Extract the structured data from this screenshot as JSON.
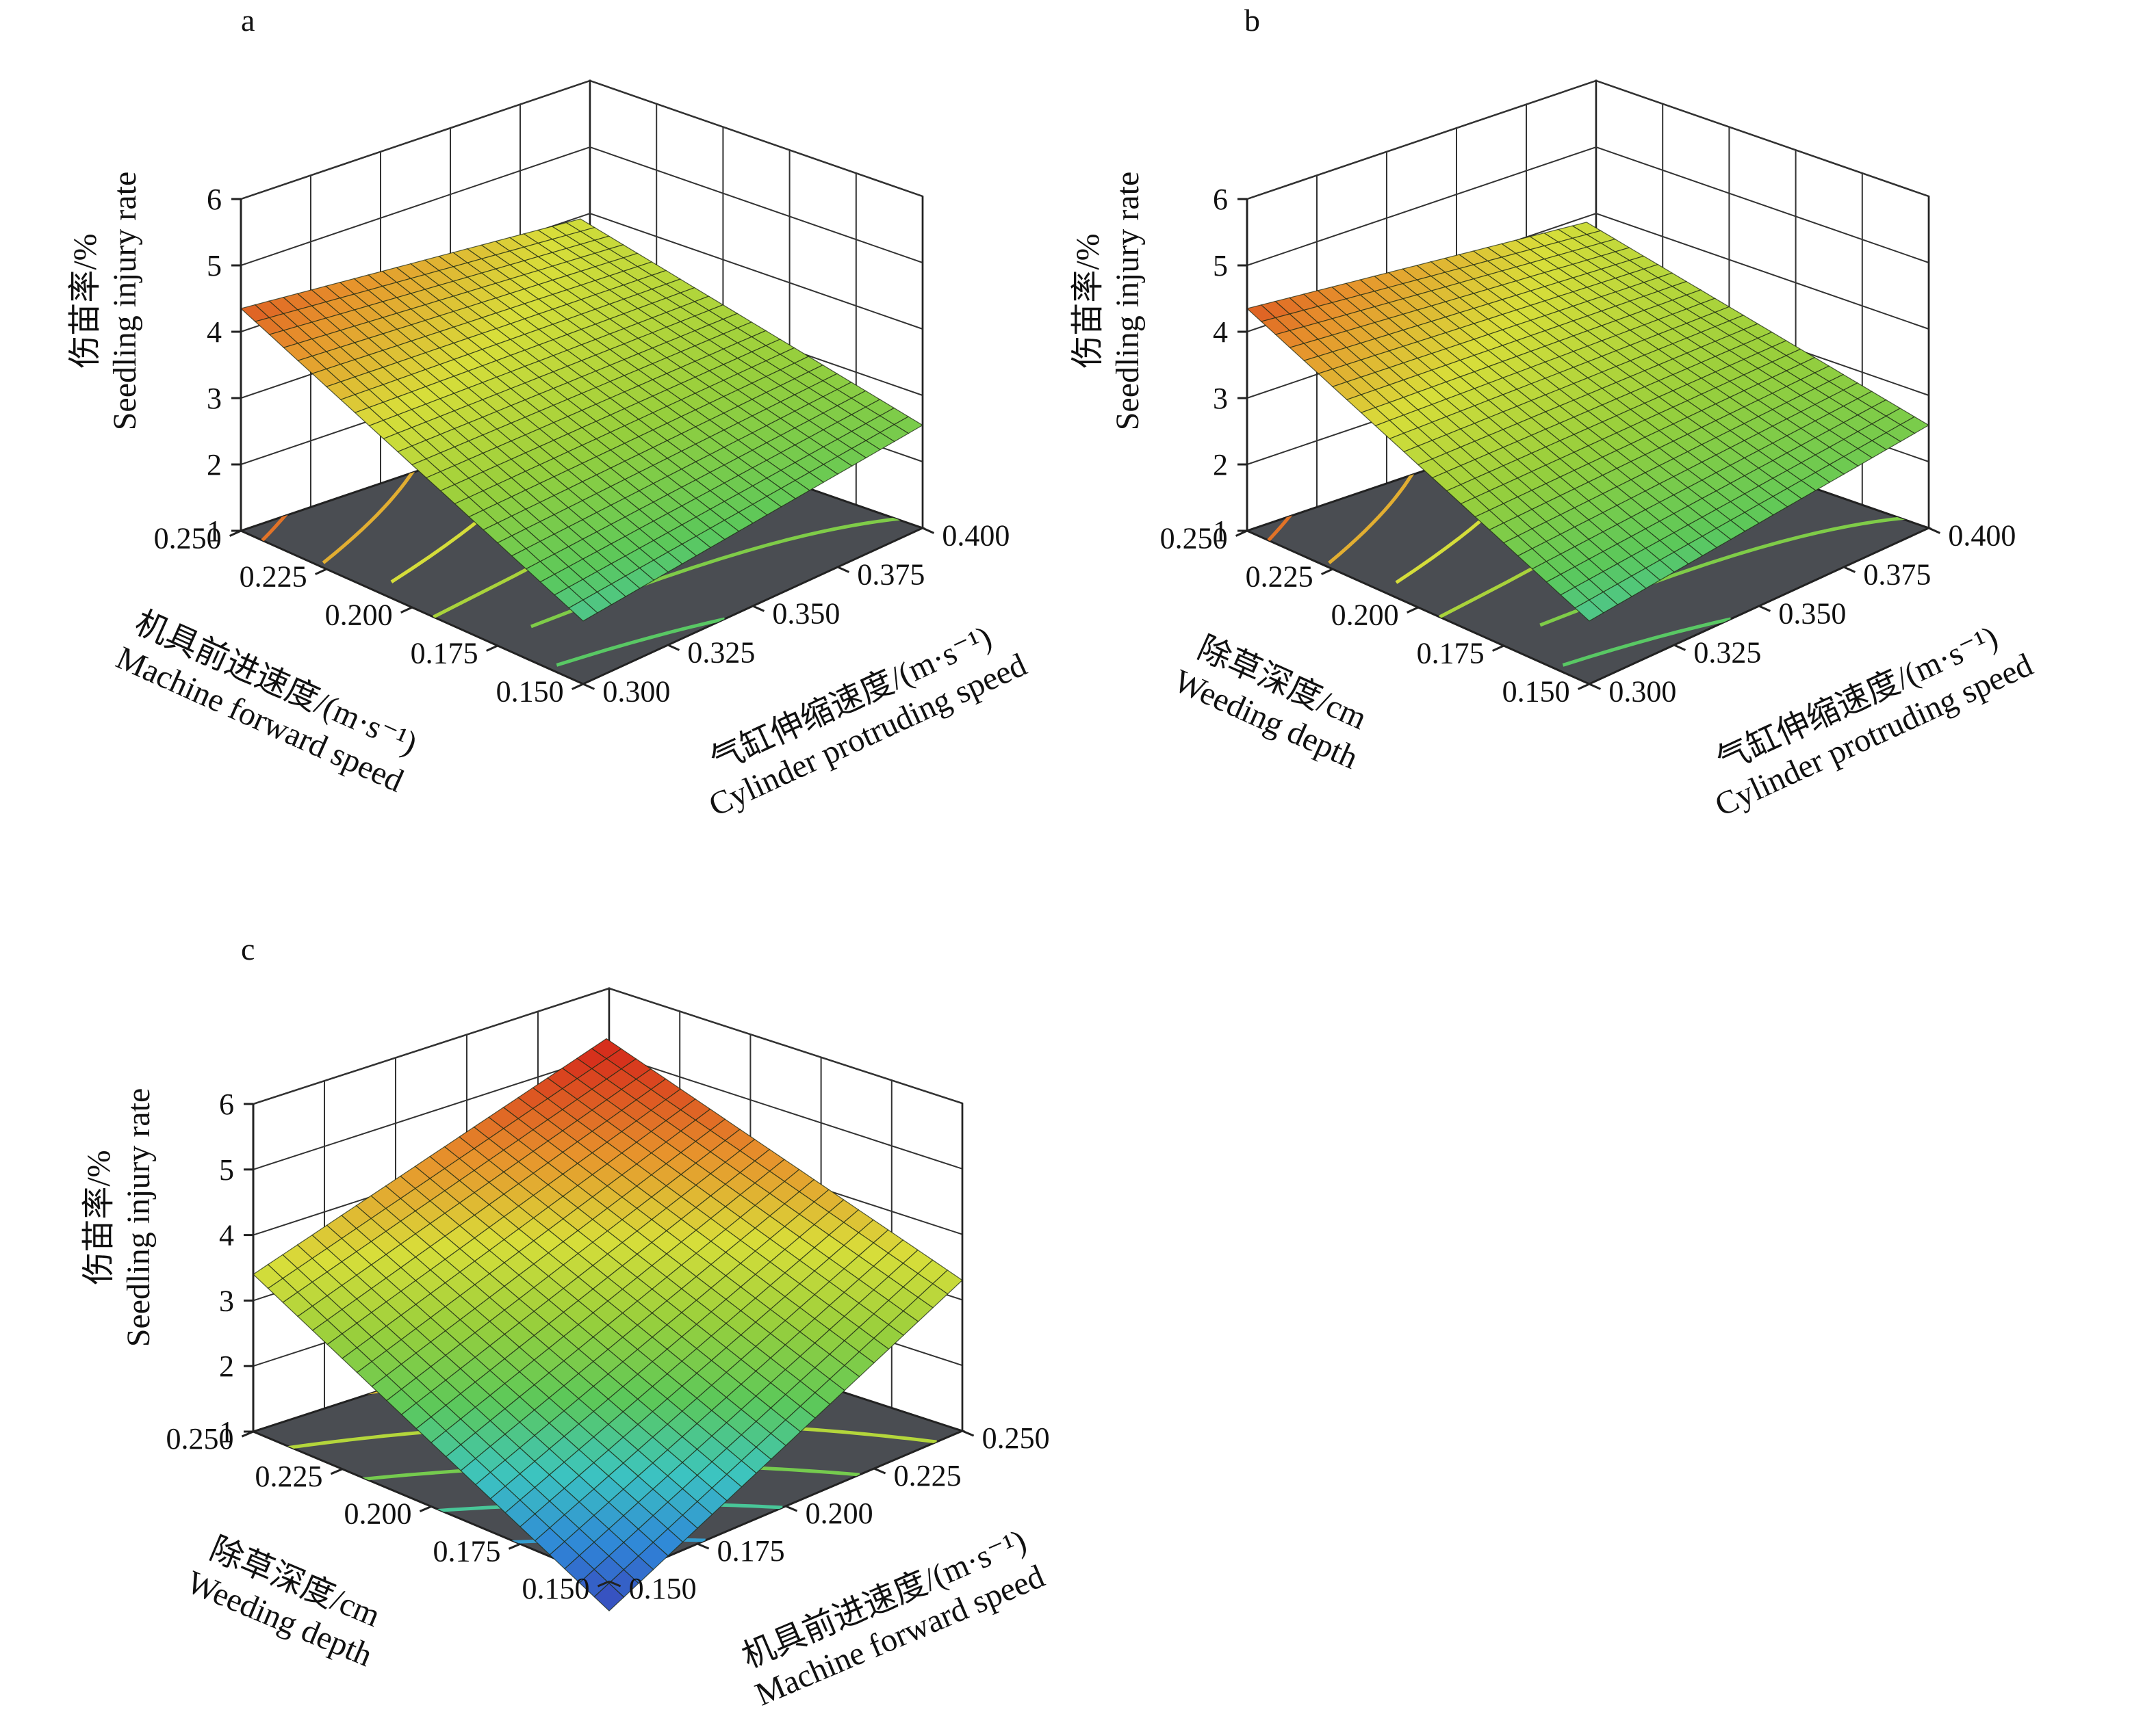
{
  "figure": {
    "type": "response-surface-3d",
    "panel_count": 3
  },
  "colors": {
    "floor": "#4a4d52",
    "mesh": "#1d2a14",
    "axes": "#222222",
    "grid": "#333333",
    "wall": "#ffffff"
  },
  "colormap": [
    "#3a3fb8",
    "#2f86d8",
    "#3cc4c0",
    "#5cc85a",
    "#98cf3c",
    "#d8de3a",
    "#e7922c",
    "#d62f1c"
  ],
  "chart_data": [
    {
      "type": "surface3d",
      "label": "a",
      "z_ticks": [
        "1",
        "2",
        "3",
        "4",
        "5",
        "6"
      ],
      "zlim": [
        1,
        6
      ],
      "x_ticks": [
        "0.250",
        "0.225",
        "0.200",
        "0.175",
        "0.150"
      ],
      "y_ticks": [
        "0.300",
        "0.325",
        "0.350",
        "0.375",
        "0.400"
      ],
      "xlim": [
        0.25,
        0.15
      ],
      "ylim": [
        0.3,
        0.4
      ],
      "zlabel_cn": "伤苗率/%",
      "zlabel_en": "Seedling injury rate",
      "xlabel_cn": "机具前进速度/(m·s⁻¹)",
      "xlabel_en": "Machine forward speed",
      "ylabel_cn": "气缸伸缩速度/(m·s⁻¹)",
      "ylabel_en": "Cylinder protruding speed",
      "surface": {
        "x_range": [
          0.15,
          0.25
        ],
        "y_range": [
          0.3,
          0.4
        ],
        "corner_values": {
          "x_low_y_low": 1.95,
          "x_high_y_low": 4.35,
          "x_low_y_high": 2.55,
          "x_high_y_high": 3.35
        }
      },
      "contour_levels": [
        2.2,
        2.6,
        3.0,
        3.4,
        3.8,
        4.2
      ]
    },
    {
      "type": "surface3d",
      "label": "b",
      "z_ticks": [
        "1",
        "2",
        "3",
        "4",
        "5",
        "6"
      ],
      "zlim": [
        1,
        6
      ],
      "x_ticks": [
        "0.250",
        "0.225",
        "0.200",
        "0.175",
        "0.150"
      ],
      "y_ticks": [
        "0.300",
        "0.325",
        "0.350",
        "0.375",
        "0.400"
      ],
      "xlim": [
        0.25,
        0.15
      ],
      "ylim": [
        0.3,
        0.4
      ],
      "zlabel_cn": "伤苗率/%",
      "zlabel_en": "Seedling injury rate",
      "xlabel_cn": "除草深度/cm",
      "xlabel_en": "Weeding depth",
      "ylabel_cn": "气缸伸缩速度/(m·s⁻¹)",
      "ylabel_en": "Cylinder protruding speed",
      "surface": {
        "x_range": [
          0.15,
          0.25
        ],
        "y_range": [
          0.3,
          0.4
        ],
        "corner_values": {
          "x_low_y_low": 1.95,
          "x_high_y_low": 4.35,
          "x_low_y_high": 2.55,
          "x_high_y_high": 3.3
        }
      },
      "contour_levels": [
        2.2,
        2.6,
        3.0,
        3.4,
        3.8,
        4.2
      ]
    },
    {
      "type": "surface3d",
      "label": "c",
      "z_ticks": [
        "1",
        "2",
        "3",
        "4",
        "5",
        "6"
      ],
      "zlim": [
        1,
        6
      ],
      "x_ticks": [
        "0.250",
        "0.225",
        "0.200",
        "0.175",
        "0.150"
      ],
      "y_ticks": [
        "0.150",
        "0.175",
        "0.200",
        "0.225",
        "0.250"
      ],
      "xlim": [
        0.25,
        0.15
      ],
      "ylim": [
        0.15,
        0.25
      ],
      "zlabel_cn": "伤苗率/%",
      "zlabel_en": "Seedling injury rate",
      "xlabel_cn": "除草深度/cm",
      "xlabel_en": "Weeding depth",
      "ylabel_cn": "机具前进速度/(m·s⁻¹)",
      "ylabel_en": "Machine forward speed",
      "surface": {
        "x_range": [
          0.15,
          0.25
        ],
        "y_range": [
          0.15,
          0.25
        ],
        "corner_values": {
          "x_low_y_low": 0.55,
          "x_high_y_low": 3.4,
          "x_low_y_high": 3.3,
          "x_high_y_high": 4.7
        }
      },
      "contour_levels": [
        1.3,
        1.9,
        2.5,
        3.1,
        3.7
      ]
    }
  ]
}
